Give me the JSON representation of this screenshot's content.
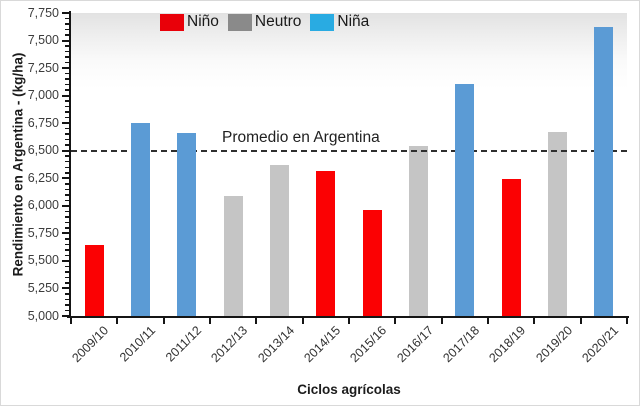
{
  "chart_data": {
    "type": "bar",
    "title": "",
    "xlabel": "Ciclos agrícolas",
    "ylabel": "Rendimiento en Argentina - (kg/ha)",
    "categories": [
      "2009/10",
      "2010/11",
      "2011/12",
      "2012/13",
      "2013/14",
      "2014/15",
      "2015/16",
      "2016/17",
      "2017/18",
      "2018/19",
      "2019/20",
      "2020/21"
    ],
    "values": [
      5640,
      6750,
      6660,
      6090,
      6370,
      6320,
      5960,
      6545,
      7110,
      6245,
      6670,
      7620
    ],
    "phases": [
      "Niño",
      "Niña",
      "Niña",
      "Neutro",
      "Neutro",
      "Niño",
      "Niño",
      "Neutro",
      "Niña",
      "Niño",
      "Neutro",
      "Niña"
    ],
    "ylim": [
      5000,
      7750
    ],
    "ytick_step": 250,
    "ytick_minor_step": 50,
    "ytick_labels": [
      "5,000",
      "5,250",
      "5,500",
      "5,750",
      "6,000",
      "6,250",
      "6,500",
      "6,750",
      "7,000",
      "7,250",
      "7,500",
      "7,750"
    ],
    "grid": false,
    "legend_position": "top",
    "legend": [
      {
        "label": "Niño",
        "swatch_color": "#e90009",
        "bar_color": "#fb0103"
      },
      {
        "label": "Neutro",
        "swatch_color": "#8a8a8a",
        "bar_color": "#c5c5c5"
      },
      {
        "label": "Niña",
        "swatch_color": "#29abe2",
        "bar_color": "#5b9bd5"
      }
    ],
    "reference_line": {
      "value": 6500,
      "label": "Promedio en Argentina",
      "style": "dashed",
      "color": "#2f2f2f"
    }
  }
}
